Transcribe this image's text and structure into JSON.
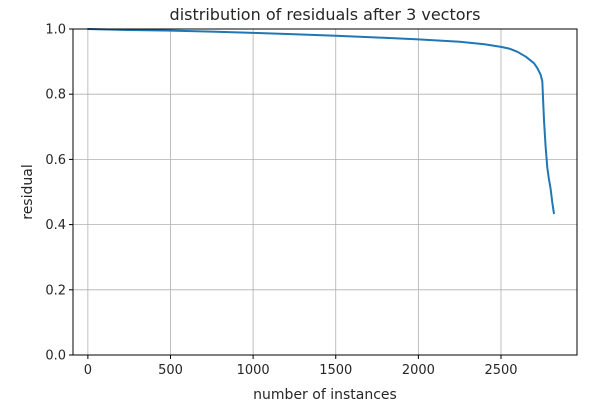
{
  "chart_data": {
    "type": "line",
    "title": "distribution of residuals after 3 vectors",
    "xlabel": "number of instances",
    "ylabel": "residual",
    "xlim": [
      -90,
      2960
    ],
    "ylim": [
      0.0,
      1.0
    ],
    "xticks": [
      0,
      500,
      1000,
      1500,
      2000,
      2500
    ],
    "yticks": [
      0.0,
      0.2,
      0.4,
      0.6,
      0.8,
      1.0
    ],
    "xtick_labels": [
      "0",
      "500",
      "1000",
      "1500",
      "2000",
      "2500"
    ],
    "ytick_labels": [
      "0.0",
      "0.2",
      "0.4",
      "0.6",
      "0.8",
      "1.0"
    ],
    "grid": true,
    "line_color": "#1f77b4",
    "series": [
      {
        "x": [
          0,
          250,
          500,
          750,
          1000,
          1250,
          1500,
          1750,
          2000,
          2250,
          2400,
          2500,
          2550,
          2600,
          2650,
          2700,
          2720,
          2740,
          2750,
          2760,
          2770,
          2780,
          2790,
          2800,
          2810,
          2820
        ],
        "y": [
          1.0,
          0.997,
          0.995,
          0.992,
          0.988,
          0.984,
          0.979,
          0.974,
          0.968,
          0.961,
          0.953,
          0.945,
          0.94,
          0.93,
          0.915,
          0.895,
          0.88,
          0.86,
          0.84,
          0.72,
          0.64,
          0.575,
          0.54,
          0.51,
          0.47,
          0.435
        ]
      }
    ]
  }
}
